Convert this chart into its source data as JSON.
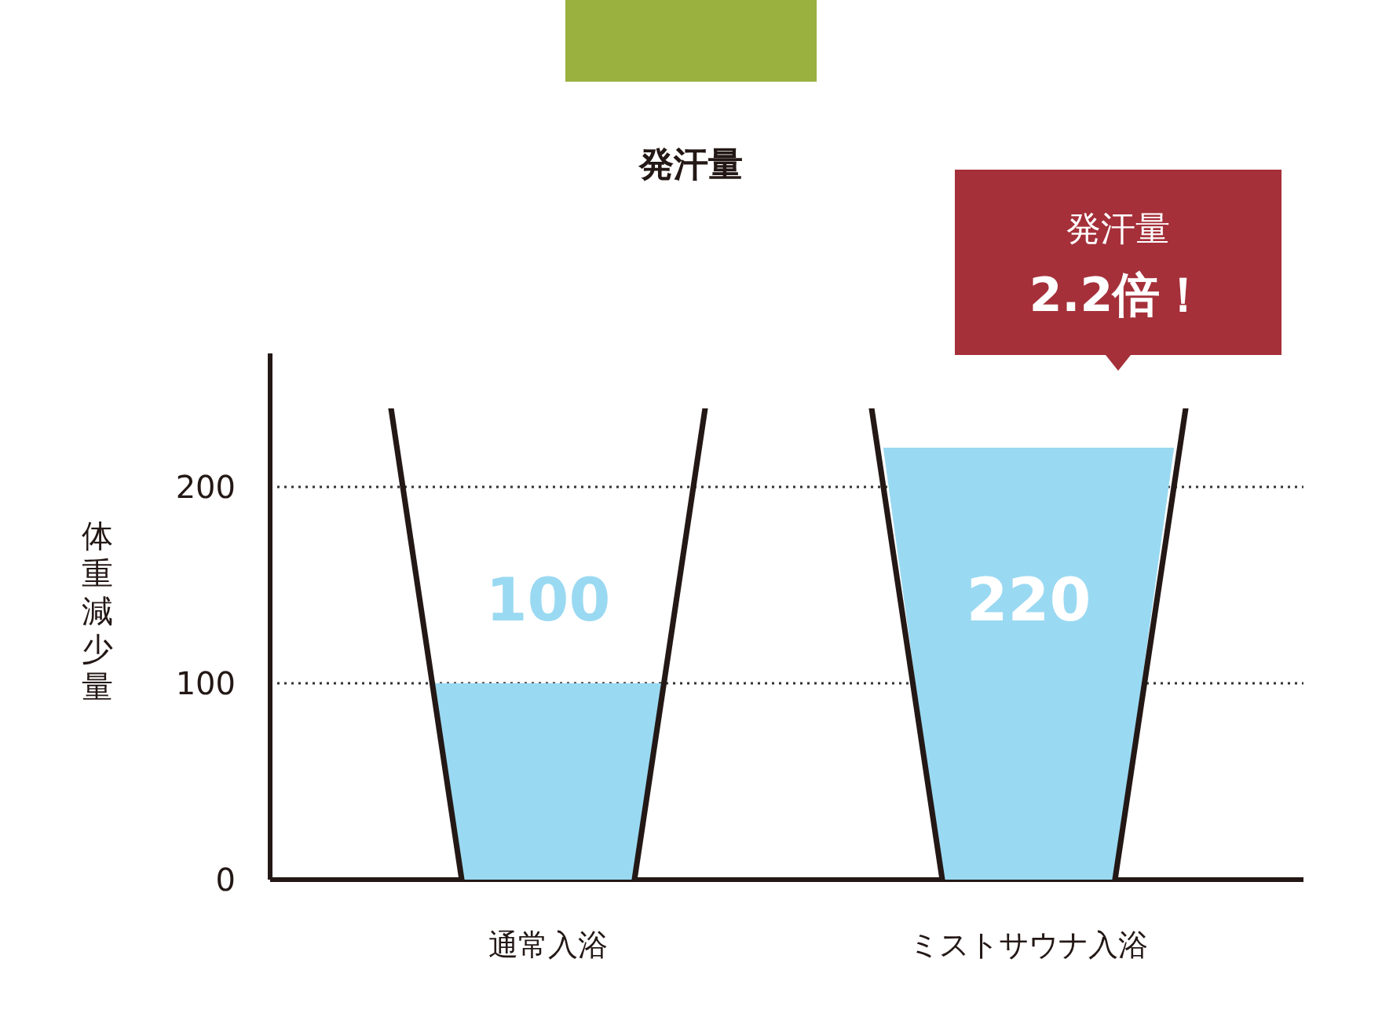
{
  "chart_data": {
    "type": "bar",
    "title": "発汗量",
    "ylabel": "体重減少量",
    "categories": [
      "通常入浴",
      "ミストサウナ入浴"
    ],
    "values": [
      100,
      220
    ],
    "colors": [
      "#9ad9f2",
      "#9ad9f2"
    ],
    "ylim": [
      0,
      268
    ],
    "yticks": [
      0,
      100,
      200
    ],
    "grid": "y",
    "data_labels": true,
    "annotations": [
      "発汗量\n2.2倍！"
    ]
  }
}
